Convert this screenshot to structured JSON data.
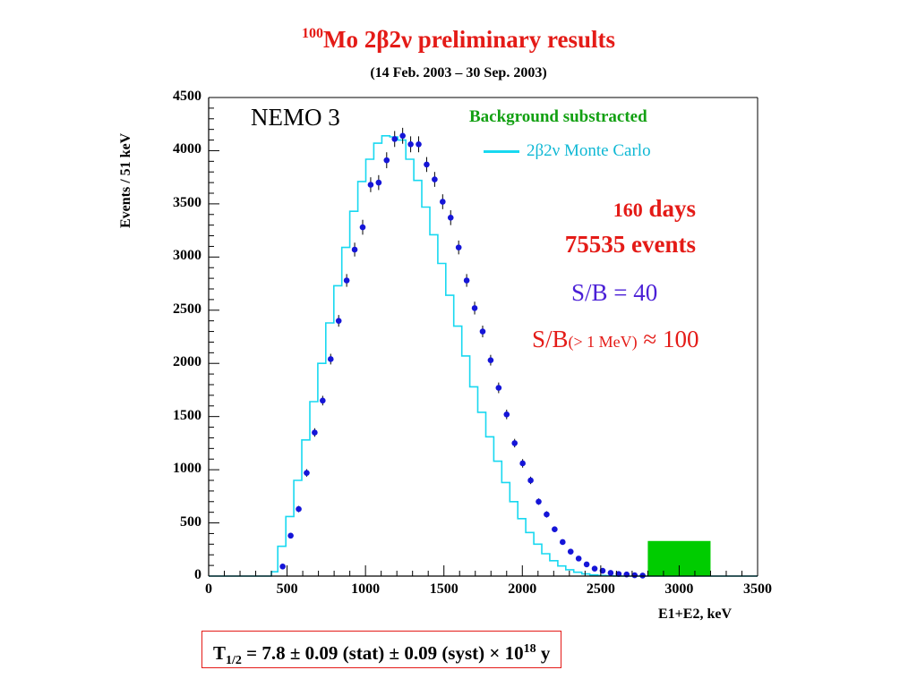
{
  "header": {
    "title_sup": "100",
    "title_main": "Mo 2β2ν preliminary results",
    "subtitle": "(14 Feb. 2003 –  30 Sep. 2003)"
  },
  "annotations": {
    "experiment": "NEMO 3",
    "background_note": "Background substracted",
    "legend_label": "2β2ν Monte Carlo",
    "days_number": "160",
    "days_word": " days",
    "events": "75535 events",
    "sb": "S/B = 40",
    "sb2_main": "S/B",
    "sb2_small": "(> 1 MeV)",
    "sb2_tail": " ≈ 100"
  },
  "result": {
    "t": "T",
    "t_sub": "1/2",
    "text": " = 7.8 ± 0.09 (stat) ± 0.09 (syst) × 10",
    "exp": "18",
    "unit": " y"
  },
  "colors": {
    "title": "#e41b17",
    "data_points": "#1515d8",
    "mc_histogram": "#18d8f0",
    "green_box": "#00cc00",
    "sb_blue": "#4a1fd6"
  },
  "chart_data": {
    "type": "histogram",
    "xlabel": "E1+E2, keV",
    "ylabel": "Events / 51 keV",
    "xlim": [
      0,
      3500
    ],
    "ylim": [
      0,
      4500
    ],
    "xticks": [
      "0",
      "500",
      "1000",
      "1500",
      "2000",
      "2500",
      "3000",
      "3500"
    ],
    "yticks": [
      "0",
      "500",
      "1000",
      "1500",
      "2000",
      "2500",
      "3000",
      "3500",
      "4000",
      "4500"
    ],
    "bin_width": 51,
    "data_x": [
      472,
      523,
      574,
      625,
      676,
      727,
      778,
      829,
      880,
      931,
      982,
      1033,
      1084,
      1135,
      1186,
      1237,
      1288,
      1339,
      1390,
      1441,
      1492,
      1543,
      1594,
      1645,
      1696,
      1747,
      1798,
      1849,
      1900,
      1951,
      2002,
      2053,
      2104,
      2155,
      2206,
      2257,
      2308,
      2359,
      2410,
      2461,
      2512,
      2563,
      2614,
      2665,
      2716,
      2767
    ],
    "data_y": [
      90,
      380,
      630,
      970,
      1350,
      1650,
      2040,
      2400,
      2780,
      3070,
      3280,
      3680,
      3700,
      3910,
      4110,
      4140,
      4060,
      4060,
      3870,
      3730,
      3520,
      3370,
      3090,
      2780,
      2520,
      2300,
      2030,
      1770,
      1520,
      1250,
      1060,
      900,
      700,
      580,
      440,
      320,
      230,
      165,
      110,
      70,
      50,
      30,
      20,
      15,
      8,
      5
    ],
    "data_errors": [
      20,
      25,
      30,
      35,
      40,
      45,
      50,
      55,
      60,
      65,
      70,
      70,
      70,
      75,
      75,
      75,
      75,
      75,
      70,
      70,
      70,
      70,
      65,
      60,
      60,
      55,
      50,
      50,
      45,
      40,
      40,
      35,
      30,
      30,
      25,
      25,
      20,
      20,
      15,
      15,
      12,
      10,
      8,
      8,
      6,
      5
    ],
    "mc_edges": [
      0,
      400,
      441,
      492,
      543,
      594,
      645,
      696,
      747,
      798,
      849,
      900,
      951,
      1002,
      1053,
      1104,
      1155,
      1206,
      1257,
      1308,
      1359,
      1410,
      1461,
      1512,
      1563,
      1614,
      1665,
      1716,
      1767,
      1818,
      1869,
      1920,
      1971,
      2022,
      2073,
      2124,
      2175,
      2226,
      2277,
      2328,
      2379,
      2430,
      2481,
      2532,
      2583,
      2634,
      2685,
      2736,
      2787,
      3500
    ],
    "mc_values": [
      0,
      40,
      280,
      560,
      900,
      1280,
      1640,
      2000,
      2380,
      2730,
      3090,
      3430,
      3710,
      3920,
      4070,
      4140,
      4130,
      4100,
      3920,
      3720,
      3470,
      3210,
      2940,
      2640,
      2350,
      2070,
      1780,
      1540,
      1310,
      1080,
      880,
      700,
      540,
      410,
      300,
      210,
      145,
      95,
      60,
      36,
      20,
      11,
      6,
      3,
      1,
      0,
      0,
      0,
      0
    ],
    "highlight_box": {
      "x0": 2800,
      "x1": 3200,
      "y0": 0,
      "y1": 330
    },
    "grid": false,
    "legend_position": "top-right"
  }
}
